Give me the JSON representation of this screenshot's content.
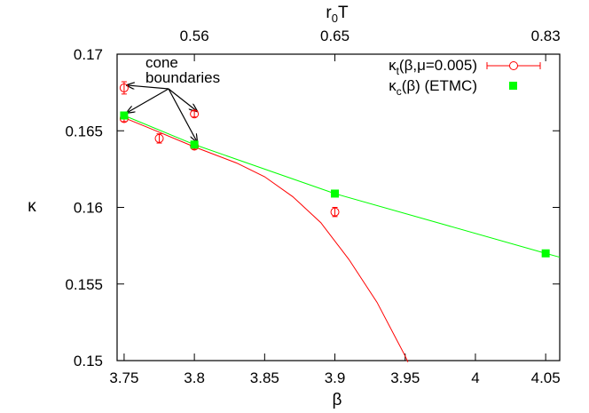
{
  "chart_data": {
    "type": "scatter",
    "xlabel": "β",
    "ylabel": "κ",
    "x2label": "r",
    "x2label_sub": "0",
    "x2label_tail": "T",
    "xlim": [
      3.745,
      4.06
    ],
    "ylim": [
      0.15,
      0.17
    ],
    "xticks": [
      3.75,
      3.8,
      3.85,
      3.9,
      3.95,
      4.0,
      4.05
    ],
    "xtick_labels": [
      "3.75",
      "3.8",
      "3.85",
      "3.9",
      "3.95",
      "4",
      "4.05"
    ],
    "yticks": [
      0.15,
      0.155,
      0.16,
      0.165,
      0.17
    ],
    "ytick_labels": [
      "0.15",
      "0.155",
      "0.16",
      "0.165",
      "0.17"
    ],
    "x2ticks": [
      {
        "beta": 3.8,
        "label": "0.56"
      },
      {
        "beta": 3.9,
        "label": "0.65"
      },
      {
        "beta": 4.05,
        "label": "0.83"
      }
    ],
    "grid": false,
    "legend_position": "top-right",
    "series": [
      {
        "name": "κ",
        "name_sub": "t",
        "name_tail": "(β,μ=0.005)",
        "color": "#ff0000",
        "marker": "open-circle",
        "points": [
          {
            "x": 3.75,
            "y": 0.1678,
            "err": 0.0004
          },
          {
            "x": 3.75,
            "y": 0.1658,
            "err": 0.0002
          },
          {
            "x": 3.775,
            "y": 0.1645,
            "err": 0.0003
          },
          {
            "x": 3.8,
            "y": 0.1661,
            "err": 0.0002
          },
          {
            "x": 3.8,
            "y": 0.164,
            "err": 0.0002
          },
          {
            "x": 3.9,
            "y": 0.1597,
            "err": 0.0003
          }
        ],
        "curve": [
          [
            3.75,
            0.16585
          ],
          [
            3.77,
            0.1651
          ],
          [
            3.8,
            0.16395
          ],
          [
            3.83,
            0.1629
          ],
          [
            3.85,
            0.162
          ],
          [
            3.87,
            0.1607
          ],
          [
            3.89,
            0.159
          ],
          [
            3.91,
            0.1566
          ],
          [
            3.93,
            0.1538
          ],
          [
            3.95,
            0.1503
          ],
          [
            3.952,
            0.1499
          ]
        ]
      },
      {
        "name": "κ",
        "name_sub": "c",
        "name_tail": "(β) (ETMC)",
        "color": "#00ff00",
        "marker": "filled-square",
        "points": [
          {
            "x": 3.75,
            "y": 0.166
          },
          {
            "x": 3.8,
            "y": 0.1641
          },
          {
            "x": 3.9,
            "y": 0.1609
          },
          {
            "x": 4.05,
            "y": 0.157
          }
        ],
        "curve": [
          [
            3.75,
            0.166
          ],
          [
            3.8,
            0.1641
          ],
          [
            3.9,
            0.1609
          ],
          [
            4.05,
            0.157
          ],
          [
            4.06,
            0.15675
          ]
        ]
      }
    ],
    "annotation": {
      "lines": [
        "cone",
        "boundaries"
      ],
      "arrow_targets": [
        [
          3.75,
          0.1678
        ],
        [
          3.75,
          0.166
        ],
        [
          3.8,
          0.1661
        ],
        [
          3.8,
          0.1641
        ]
      ]
    }
  }
}
